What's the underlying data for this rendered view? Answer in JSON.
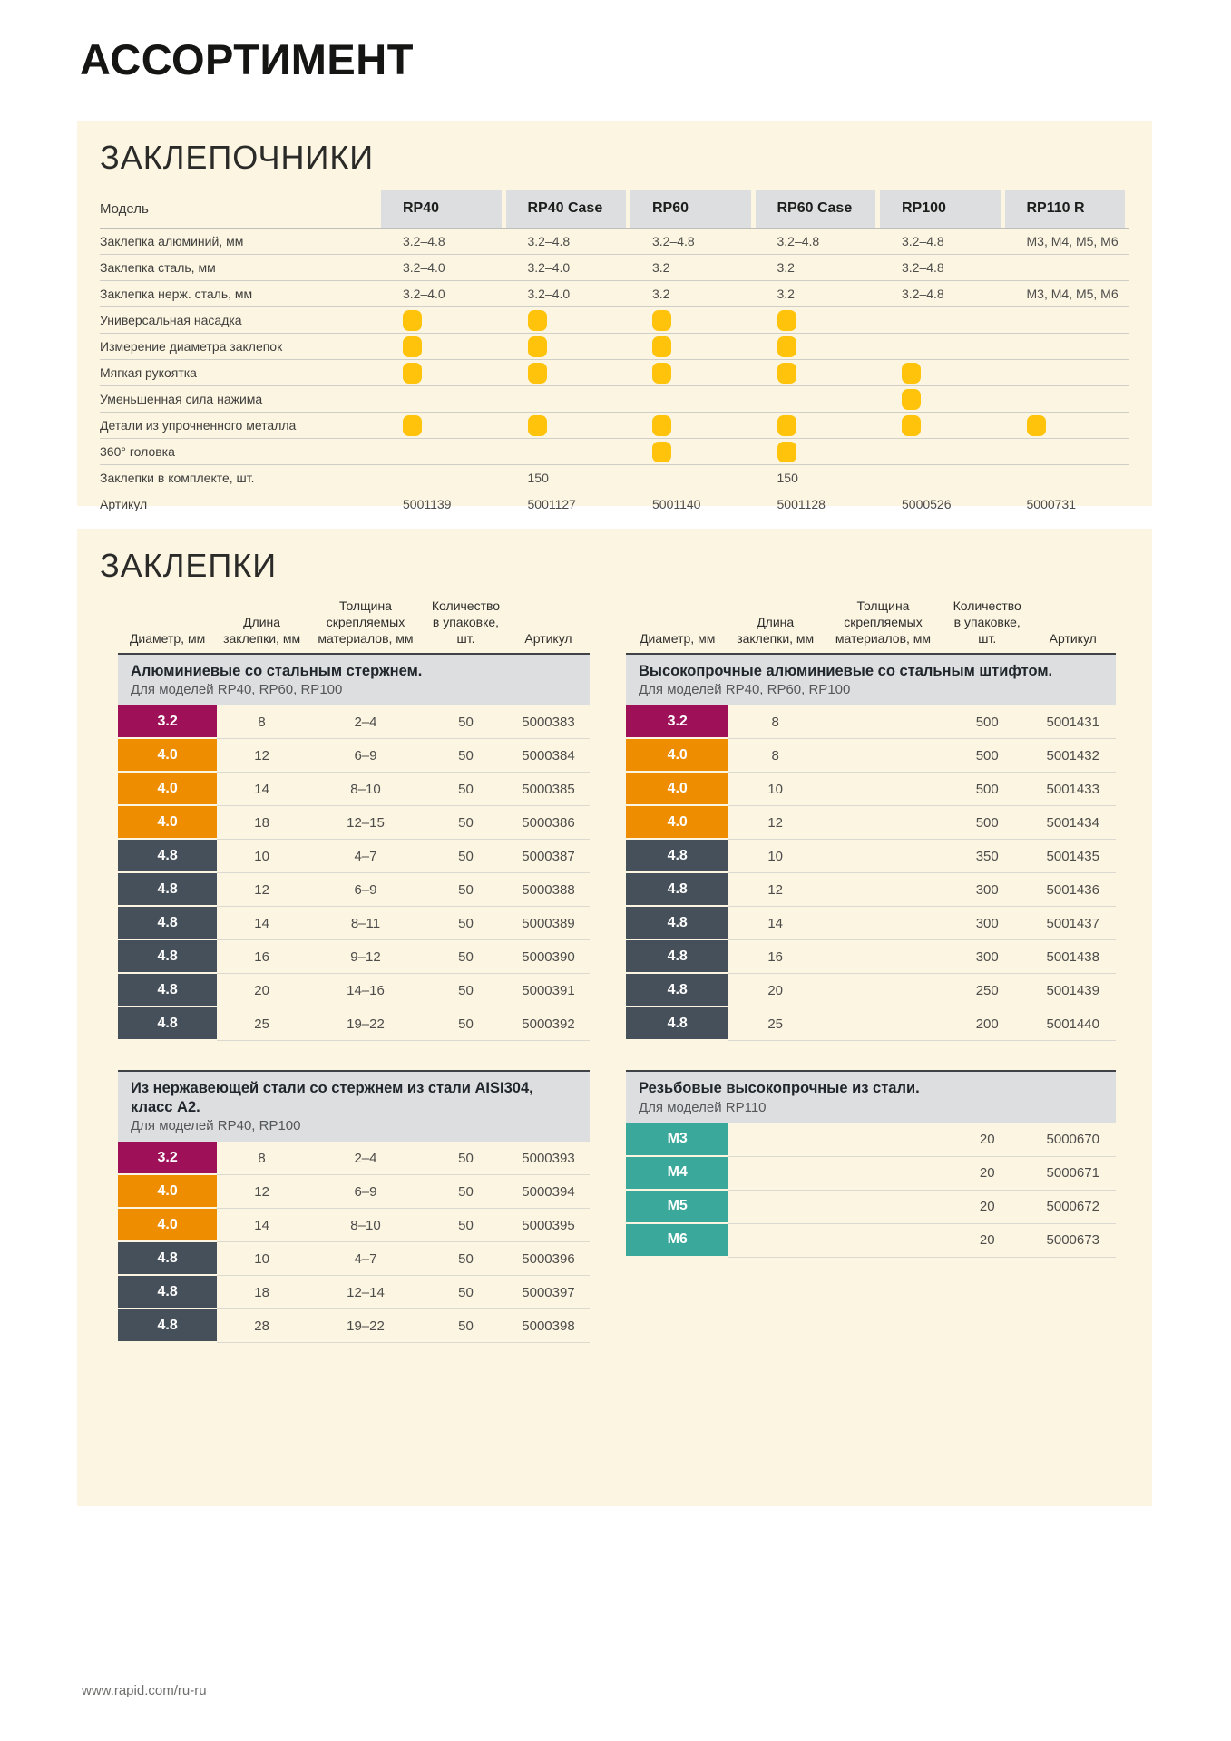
{
  "page": {
    "title": "АССОРТИМЕНТ",
    "footer_url": "www.rapid.com/ru-ru"
  },
  "riveters": {
    "section_title": "ЗАКЛЕПОЧНИКИ",
    "col_header_label": "Модель",
    "models": [
      "RP40",
      "RP40 Case",
      "RP60",
      "RP60 Case",
      "RP100",
      "RP110 R"
    ],
    "check_icon": "yellow-rounded-square",
    "check_color": "#FFC30B",
    "rows": [
      {
        "label": "Заклепка алюминий, мм",
        "type": "text",
        "values": [
          "3.2–4.8",
          "3.2–4.8",
          "3.2–4.8",
          "3.2–4.8",
          "3.2–4.8",
          "M3, M4, M5, M6"
        ]
      },
      {
        "label": "Заклепка сталь, мм",
        "type": "text",
        "values": [
          "3.2–4.0",
          "3.2–4.0",
          "3.2",
          "3.2",
          "3.2–4.8",
          ""
        ]
      },
      {
        "label": "Заклепка нерж. сталь, мм",
        "type": "text",
        "values": [
          "3.2–4.0",
          "3.2–4.0",
          "3.2",
          "3.2",
          "3.2–4.8",
          "M3, M4, M5, M6"
        ]
      },
      {
        "label": "Универсальная насадка",
        "type": "check",
        "values": [
          true,
          true,
          true,
          true,
          false,
          false
        ]
      },
      {
        "label": "Измерение диаметра заклепок",
        "type": "check",
        "values": [
          true,
          true,
          true,
          true,
          false,
          false
        ]
      },
      {
        "label": "Мягкая рукоятка",
        "type": "check",
        "values": [
          true,
          true,
          true,
          true,
          true,
          false
        ]
      },
      {
        "label": "Уменьшенная сила нажима",
        "type": "check",
        "values": [
          false,
          false,
          false,
          false,
          true,
          false
        ]
      },
      {
        "label": "Детали из упрочненного металла",
        "type": "check",
        "values": [
          true,
          true,
          true,
          true,
          true,
          true
        ]
      },
      {
        "label": "360° головка",
        "type": "check",
        "values": [
          false,
          false,
          true,
          true,
          false,
          false
        ]
      },
      {
        "label": "Заклепки в комплекте, шт.",
        "type": "text",
        "values": [
          "",
          "150",
          "",
          "150",
          "",
          ""
        ]
      },
      {
        "label": "Артикул",
        "type": "text",
        "values": [
          "5001139",
          "5001127",
          "5001140",
          "5001128",
          "5000526",
          "5000731"
        ]
      }
    ]
  },
  "rivets": {
    "section_title": "ЗАКЛЕПКИ",
    "col_headers": [
      "Диаметр, мм",
      "Длина\nзаклепки, мм",
      "Толщина\nскрепляемых\nматериалов, мм",
      "Количество\nв упаковке, шт.",
      "Артикул"
    ],
    "diameter_colors": {
      "3.2": "#9E1158",
      "4.0": "#EF8D00",
      "4.8": "#46505A",
      "M": "#3AA99B"
    },
    "tables": [
      {
        "id": "aluminium-steel-core",
        "show_col_headers": true,
        "title": "Алюминиевые со стальным стержнем.",
        "subtitle": "Для моделей RP40, RP60, RP100",
        "rows": [
          [
            "3.2",
            "8",
            "2–4",
            "50",
            "5000383"
          ],
          [
            "4.0",
            "12",
            "6–9",
            "50",
            "5000384"
          ],
          [
            "4.0",
            "14",
            "8–10",
            "50",
            "5000385"
          ],
          [
            "4.0",
            "18",
            "12–15",
            "50",
            "5000386"
          ],
          [
            "4.8",
            "10",
            "4–7",
            "50",
            "5000387"
          ],
          [
            "4.8",
            "12",
            "6–9",
            "50",
            "5000388"
          ],
          [
            "4.8",
            "14",
            "8–11",
            "50",
            "5000389"
          ],
          [
            "4.8",
            "16",
            "9–12",
            "50",
            "5000390"
          ],
          [
            "4.8",
            "20",
            "14–16",
            "50",
            "5000391"
          ],
          [
            "4.8",
            "25",
            "19–22",
            "50",
            "5000392"
          ]
        ]
      },
      {
        "id": "high-strength-aluminium",
        "show_col_headers": true,
        "title": "Высокопрочные алюминиевые со стальным штифтом.",
        "subtitle": "Для моделей RP40, RP60, RP100",
        "rows": [
          [
            "3.2",
            "8",
            "",
            "500",
            "5001431"
          ],
          [
            "4.0",
            "8",
            "",
            "500",
            "5001432"
          ],
          [
            "4.0",
            "10",
            "",
            "500",
            "5001433"
          ],
          [
            "4.0",
            "12",
            "",
            "500",
            "5001434"
          ],
          [
            "4.8",
            "10",
            "",
            "350",
            "5001435"
          ],
          [
            "4.8",
            "12",
            "",
            "300",
            "5001436"
          ],
          [
            "4.8",
            "14",
            "",
            "300",
            "5001437"
          ],
          [
            "4.8",
            "16",
            "",
            "300",
            "5001438"
          ],
          [
            "4.8",
            "20",
            "",
            "250",
            "5001439"
          ],
          [
            "4.8",
            "25",
            "",
            "200",
            "5001440"
          ]
        ]
      },
      {
        "id": "stainless-aisi304",
        "show_col_headers": false,
        "title": "Из нержавеющей стали со стержнем из стали AISI304, класс А2.",
        "subtitle": "Для моделей RP40, RP100",
        "rows": [
          [
            "3.2",
            "8",
            "2–4",
            "50",
            "5000393"
          ],
          [
            "4.0",
            "12",
            "6–9",
            "50",
            "5000394"
          ],
          [
            "4.0",
            "14",
            "8–10",
            "50",
            "5000395"
          ],
          [
            "4.8",
            "10",
            "4–7",
            "50",
            "5000396"
          ],
          [
            "4.8",
            "18",
            "12–14",
            "50",
            "5000397"
          ],
          [
            "4.8",
            "28",
            "19–22",
            "50",
            "5000398"
          ]
        ]
      },
      {
        "id": "threaded-high-strength-steel",
        "show_col_headers": false,
        "title": "Резьбовые высокопрочные из стали.",
        "subtitle": "Для моделей RP110",
        "rows": [
          [
            "M3",
            "",
            "",
            "20",
            "5000670"
          ],
          [
            "M4",
            "",
            "",
            "20",
            "5000671"
          ],
          [
            "M5",
            "",
            "",
            "20",
            "5000672"
          ],
          [
            "M6",
            "",
            "",
            "20",
            "5000673"
          ]
        ]
      }
    ]
  }
}
